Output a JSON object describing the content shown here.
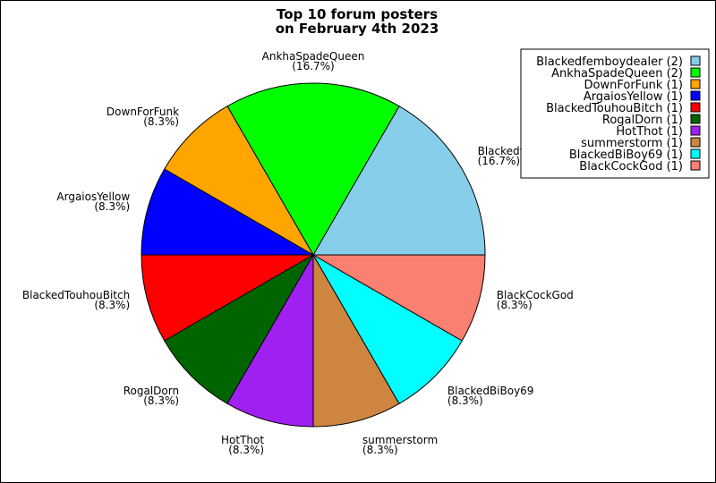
{
  "chart_data": {
    "type": "pie",
    "title": "Top 10 forum posters\non February 4th 2023",
    "legend_position": "top-right",
    "slices": [
      {
        "label": "Blackedfemboydealer",
        "value": 2,
        "percent": "16.7%",
        "legend": "Blackedfemboydealer (2)",
        "color": "#87ceeb"
      },
      {
        "label": "AnkhaSpadeQueen",
        "value": 2,
        "percent": "16.7%",
        "legend": "AnkhaSpadeQueen (2)",
        "color": "#00ff00"
      },
      {
        "label": "DownForFunk",
        "value": 1,
        "percent": "8.3%",
        "legend": "DownForFunk (1)",
        "color": "#ffa500"
      },
      {
        "label": "ArgaiosYellow",
        "value": 1,
        "percent": "8.3%",
        "legend": "ArgaiosYellow (1)",
        "color": "#0000ff"
      },
      {
        "label": "BlackedTouhouBitch",
        "value": 1,
        "percent": "8.3%",
        "legend": "BlackedTouhouBitch (1)",
        "color": "#ff0000"
      },
      {
        "label": "RogalDorn",
        "value": 1,
        "percent": "8.3%",
        "legend": "RogalDorn (1)",
        "color": "#006400"
      },
      {
        "label": "HotThot",
        "value": 1,
        "percent": "8.3%",
        "legend": "HotThot (1)",
        "color": "#a020f0"
      },
      {
        "label": "summerstorm",
        "value": 1,
        "percent": "8.3%",
        "legend": "summerstorm (1)",
        "color": "#cd853f"
      },
      {
        "label": "BlackedBiBoy69",
        "value": 1,
        "percent": "8.3%",
        "legend": "BlackedBiBoy69 (1)",
        "color": "#00ffff"
      },
      {
        "label": "BlackCockGod",
        "value": 1,
        "percent": "8.3%",
        "legend": "BlackCockGod (1)",
        "color": "#fa8072"
      }
    ]
  }
}
